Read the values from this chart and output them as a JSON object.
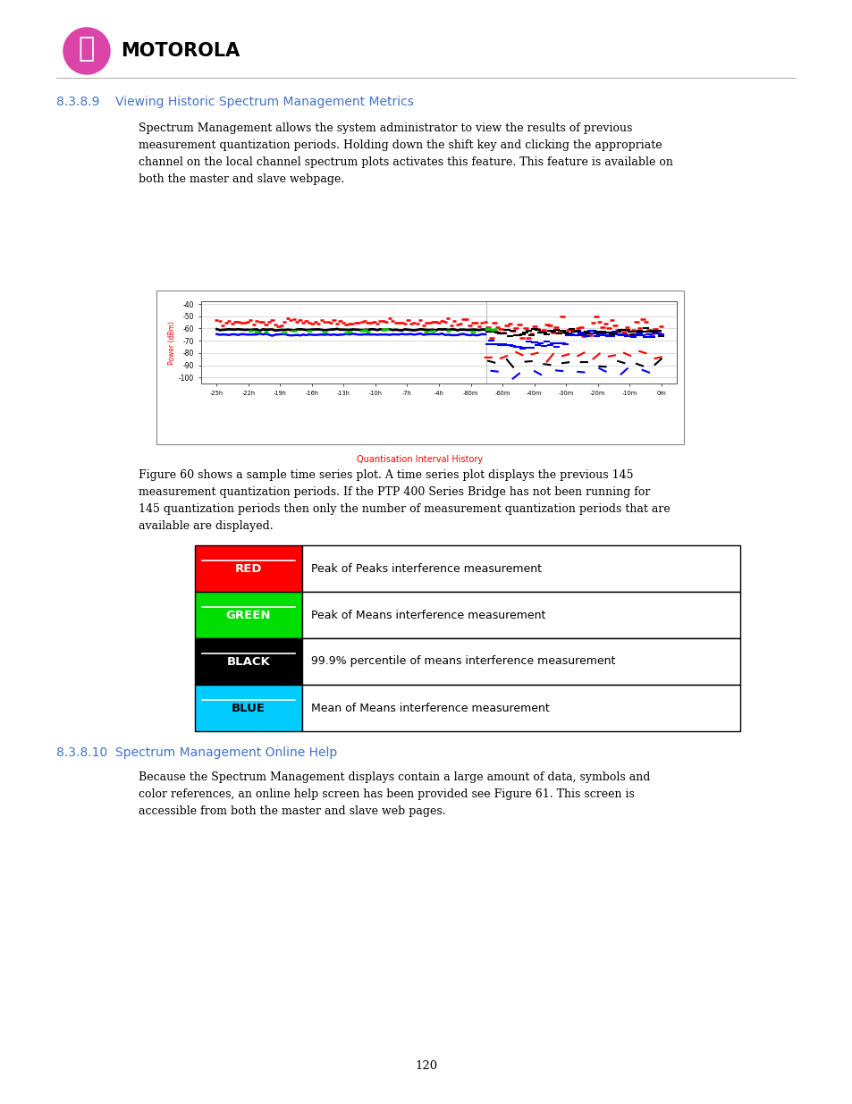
{
  "page_bg": "#ffffff",
  "heading1": "8.3.8.9    Viewing Historic Spectrum Management Metrics",
  "heading1_color": "#4472C4",
  "body1_lines": [
    "Spectrum Management allows the system administrator to view the results of previous",
    "measurement quantization periods. Holding down the shift key and clicking the appropriate",
    "channel on the local channel spectrum plots activates this feature. This feature is available on",
    "both the master and slave webpage."
  ],
  "body2_lines": [
    "Figure 60 shows a sample time series plot. A time series plot displays the previous 145",
    "measurement quantization periods. If the PTP 400 Series Bridge has not been running for",
    "145 quantization periods then only the number of measurement quantization periods that are",
    "available are displayed."
  ],
  "table_rows": [
    {
      "color": "#ff0000",
      "label": "RED",
      "label_color": "white",
      "text": "Peak of Peaks interference measurement"
    },
    {
      "color": "#00dd00",
      "label": "GREEN",
      "label_color": "white",
      "text": "Peak of Means interference measurement"
    },
    {
      "color": "#000000",
      "label": "BLACK",
      "label_color": "white",
      "text": "99.9% percentile of means interference measurement"
    },
    {
      "color": "#00ccff",
      "label": "BLUE",
      "label_color": "black",
      "text": "Mean of Means interference measurement"
    }
  ],
  "heading2": "8.3.8.10  Spectrum Management Online Help",
  "heading2_color": "#4472C4",
  "body3_lines": [
    "Because the Spectrum Management displays contain a large amount of data, symbols and",
    "color references, an online help screen has been provided see Figure 61. This screen is",
    "accessible from both the master and slave web pages."
  ],
  "page_number": "120",
  "motorola_text": "MOTOROLA",
  "logo_color": "#dd44aa",
  "xtick_labels": [
    "-25h",
    "-22h",
    "-19h",
    "-16h",
    "-13h",
    "-10h",
    "-7h",
    "-4h",
    "-80m",
    "-60m",
    "-40m",
    "-30m",
    "-20m",
    "-10m",
    "0m"
  ],
  "ytick_labels": [
    "-40",
    "-50",
    "-60",
    "-70",
    "-80",
    "-90",
    "-100"
  ],
  "ytick_vals": [
    -40,
    -50,
    -60,
    -70,
    -80,
    -90,
    -100
  ],
  "plot_xlabel": "Quantisation Interval History",
  "plot_ylabel": "Power (dBm)"
}
